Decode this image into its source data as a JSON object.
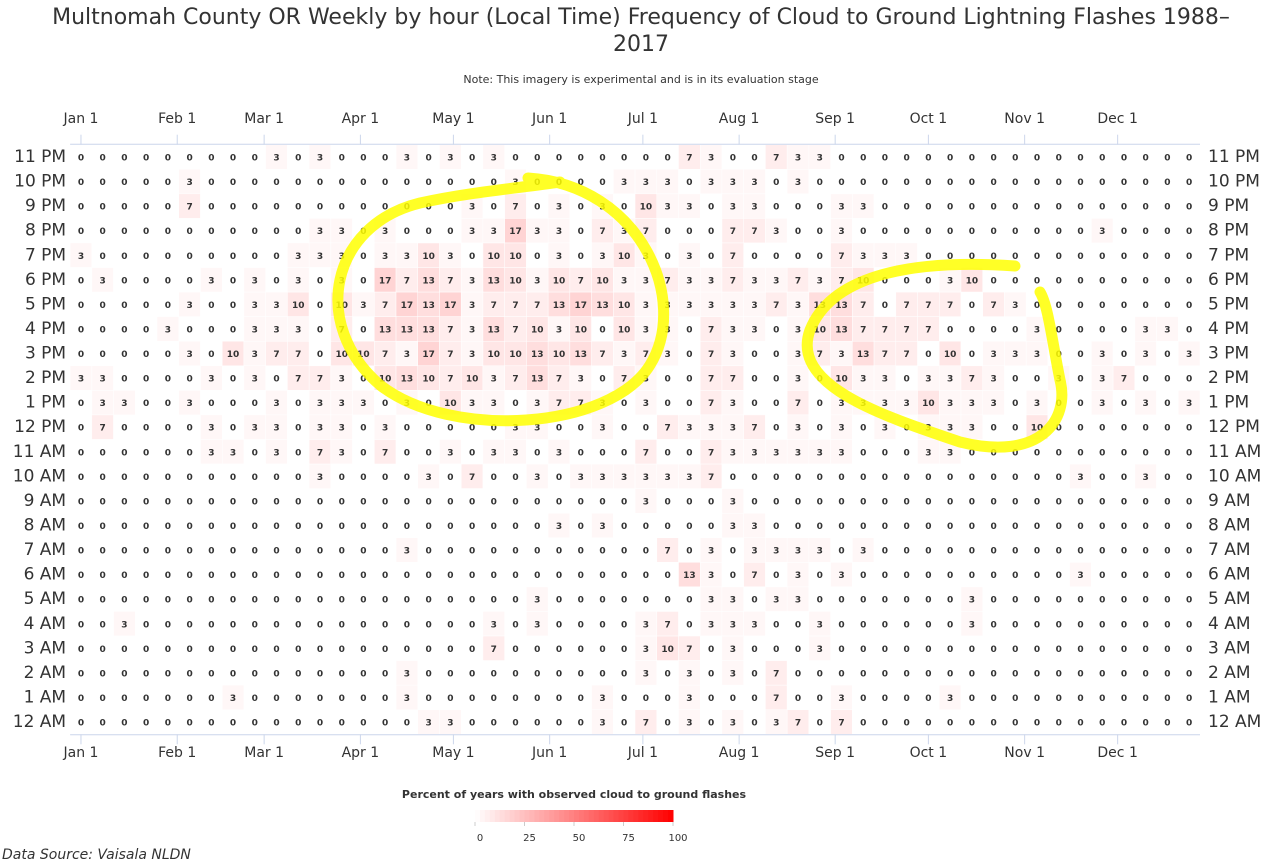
{
  "chart_data": {
    "type": "heatmap",
    "title": "Multnomah County OR Weekly by hour (Local Time) Frequency of Cloud to Ground Lightning Flashes 1988–2017",
    "subtitle": "Note: This imagery is experimental and is in its evaluation stage",
    "source": "Data Source: Vaisala NLDN",
    "colorbar_title": "Percent of years with observed cloud to ground flashes",
    "colorscale": [
      "#ffffff",
      "#ff0000"
    ],
    "zlim": [
      0,
      100
    ],
    "zticks": [
      0,
      25,
      50,
      75,
      100
    ],
    "xlim": [
      -0.5,
      51.5
    ],
    "xticks": [
      {
        "value": 0,
        "label": "Jan 1"
      },
      {
        "value": 4.43,
        "label": "Feb 1"
      },
      {
        "value": 8.43,
        "label": "Mar 1"
      },
      {
        "value": 12.86,
        "label": "Apr 1"
      },
      {
        "value": 17.14,
        "label": "May 1"
      },
      {
        "value": 21.57,
        "label": "Jun 1"
      },
      {
        "value": 25.86,
        "label": "Jul 1"
      },
      {
        "value": 30.29,
        "label": "Aug 1"
      },
      {
        "value": 34.71,
        "label": "Sep 1"
      },
      {
        "value": 39,
        "label": "Oct 1"
      },
      {
        "value": 43.43,
        "label": "Nov 1"
      },
      {
        "value": 47.71,
        "label": "Dec 1"
      }
    ],
    "rows": [
      "11 PM",
      "10 PM",
      "9 PM",
      "8 PM",
      "7 PM",
      "6 PM",
      "5 PM",
      "4 PM",
      "3 PM",
      "2 PM",
      "1 PM",
      "12 PM",
      "11 AM",
      "10 AM",
      "9 AM",
      "8 AM",
      "7 AM",
      "6 AM",
      "5 AM",
      "4 AM",
      "3 AM",
      "2 AM",
      "1 AM",
      "12 AM"
    ],
    "z": [
      [
        0,
        0,
        0,
        0,
        0,
        0,
        0,
        0,
        0,
        3,
        0,
        3,
        0,
        0,
        0,
        3,
        0,
        3,
        0,
        3,
        0,
        0,
        0,
        0,
        0,
        0,
        0,
        0,
        7,
        3,
        0,
        0,
        7,
        3,
        3,
        0,
        0,
        0,
        0,
        0,
        0,
        0,
        0,
        0,
        0,
        0,
        0,
        0,
        0,
        0,
        0,
        0
      ],
      [
        0,
        0,
        0,
        0,
        0,
        3,
        0,
        0,
        0,
        0,
        0,
        0,
        0,
        0,
        0,
        0,
        0,
        0,
        0,
        0,
        3,
        0,
        0,
        0,
        0,
        3,
        3,
        3,
        0,
        3,
        3,
        3,
        0,
        3,
        0,
        0,
        0,
        0,
        0,
        0,
        0,
        0,
        0,
        0,
        0,
        0,
        0,
        0,
        0,
        0,
        0,
        0
      ],
      [
        0,
        0,
        0,
        0,
        0,
        7,
        0,
        0,
        0,
        0,
        0,
        0,
        0,
        0,
        0,
        0,
        0,
        0,
        3,
        0,
        7,
        0,
        3,
        0,
        3,
        0,
        10,
        3,
        3,
        0,
        3,
        3,
        0,
        0,
        0,
        3,
        3,
        0,
        0,
        0,
        0,
        0,
        0,
        0,
        0,
        0,
        0,
        0,
        0,
        0,
        0,
        0
      ],
      [
        0,
        0,
        0,
        0,
        0,
        0,
        0,
        0,
        0,
        0,
        0,
        3,
        3,
        0,
        3,
        0,
        0,
        0,
        3,
        3,
        17,
        3,
        3,
        0,
        7,
        3,
        7,
        0,
        0,
        0,
        7,
        7,
        3,
        0,
        0,
        3,
        0,
        0,
        0,
        0,
        0,
        0,
        0,
        0,
        0,
        0,
        0,
        3,
        0,
        0,
        0,
        0
      ],
      [
        3,
        0,
        0,
        0,
        0,
        0,
        0,
        0,
        0,
        0,
        3,
        3,
        3,
        0,
        3,
        3,
        10,
        3,
        0,
        10,
        10,
        0,
        3,
        0,
        3,
        10,
        3,
        0,
        3,
        0,
        7,
        0,
        0,
        0,
        0,
        7,
        3,
        3,
        3,
        0,
        0,
        0,
        0,
        0,
        0,
        0,
        0,
        0,
        0,
        0,
        0,
        0
      ],
      [
        0,
        3,
        0,
        0,
        0,
        0,
        3,
        0,
        3,
        0,
        3,
        0,
        3,
        0,
        17,
        7,
        13,
        7,
        3,
        13,
        10,
        3,
        10,
        7,
        10,
        3,
        3,
        7,
        3,
        3,
        7,
        3,
        3,
        7,
        3,
        7,
        10,
        0,
        0,
        0,
        3,
        10,
        0,
        0,
        0,
        0,
        0,
        0,
        0,
        0,
        0,
        0
      ],
      [
        0,
        0,
        0,
        0,
        0,
        3,
        0,
        0,
        3,
        3,
        10,
        0,
        10,
        3,
        7,
        17,
        13,
        17,
        3,
        7,
        7,
        7,
        13,
        17,
        13,
        10,
        3,
        3,
        3,
        3,
        3,
        3,
        7,
        3,
        13,
        13,
        7,
        0,
        7,
        7,
        7,
        0,
        7,
        3,
        0,
        0,
        0,
        0,
        0,
        0,
        0,
        0
      ],
      [
        0,
        0,
        0,
        0,
        3,
        0,
        0,
        0,
        3,
        3,
        3,
        0,
        7,
        0,
        13,
        13,
        13,
        7,
        3,
        13,
        7,
        10,
        3,
        10,
        0,
        10,
        3,
        3,
        0,
        7,
        3,
        3,
        0,
        3,
        10,
        13,
        7,
        7,
        7,
        7,
        0,
        0,
        0,
        0,
        3,
        0,
        0,
        0,
        0,
        3,
        3,
        0
      ],
      [
        0,
        0,
        0,
        0,
        0,
        3,
        0,
        10,
        3,
        7,
        7,
        0,
        10,
        10,
        7,
        3,
        17,
        7,
        3,
        10,
        10,
        13,
        10,
        13,
        7,
        3,
        7,
        3,
        0,
        7,
        3,
        0,
        0,
        3,
        7,
        3,
        13,
        7,
        7,
        0,
        10,
        0,
        3,
        3,
        3,
        0,
        0,
        3,
        0,
        3,
        0,
        3
      ],
      [
        3,
        3,
        0,
        0,
        0,
        0,
        3,
        0,
        3,
        0,
        7,
        7,
        3,
        0,
        10,
        13,
        10,
        7,
        10,
        3,
        7,
        13,
        7,
        3,
        0,
        7,
        3,
        0,
        0,
        7,
        7,
        0,
        0,
        3,
        0,
        10,
        3,
        3,
        0,
        3,
        3,
        7,
        3,
        0,
        0,
        3,
        0,
        3,
        7,
        0,
        0,
        0
      ],
      [
        0,
        3,
        3,
        0,
        0,
        3,
        0,
        0,
        0,
        3,
        0,
        3,
        3,
        3,
        0,
        3,
        0,
        10,
        3,
        3,
        0,
        3,
        7,
        7,
        3,
        0,
        3,
        0,
        0,
        7,
        3,
        0,
        0,
        7,
        0,
        3,
        3,
        3,
        3,
        10,
        3,
        3,
        3,
        0,
        3,
        0,
        0,
        3,
        0,
        3,
        0,
        3
      ],
      [
        0,
        7,
        0,
        0,
        0,
        0,
        3,
        0,
        3,
        3,
        0,
        3,
        3,
        0,
        3,
        0,
        0,
        0,
        0,
        0,
        3,
        3,
        0,
        0,
        3,
        0,
        0,
        7,
        3,
        3,
        3,
        7,
        0,
        3,
        0,
        3,
        0,
        3,
        0,
        3,
        3,
        3,
        0,
        0,
        10,
        0,
        0,
        0,
        0,
        0,
        0,
        0
      ],
      [
        0,
        0,
        0,
        0,
        0,
        0,
        3,
        3,
        0,
        3,
        0,
        7,
        3,
        0,
        7,
        0,
        0,
        3,
        0,
        3,
        3,
        0,
        3,
        0,
        0,
        0,
        7,
        0,
        0,
        7,
        3,
        3,
        3,
        3,
        3,
        3,
        0,
        0,
        0,
        3,
        3,
        0,
        0,
        0,
        0,
        0,
        0,
        0,
        0,
        0,
        0,
        0
      ],
      [
        0,
        0,
        0,
        0,
        0,
        0,
        0,
        0,
        0,
        0,
        0,
        3,
        0,
        0,
        0,
        0,
        3,
        0,
        7,
        0,
        0,
        3,
        0,
        3,
        3,
        3,
        3,
        3,
        3,
        7,
        0,
        0,
        0,
        0,
        0,
        0,
        0,
        0,
        0,
        0,
        0,
        0,
        0,
        0,
        0,
        0,
        3,
        0,
        0,
        3,
        0,
        0
      ],
      [
        0,
        0,
        0,
        0,
        0,
        0,
        0,
        0,
        0,
        0,
        0,
        0,
        0,
        0,
        0,
        0,
        0,
        0,
        0,
        0,
        0,
        0,
        0,
        0,
        0,
        0,
        3,
        0,
        0,
        0,
        3,
        0,
        0,
        0,
        0,
        0,
        0,
        0,
        0,
        0,
        0,
        0,
        0,
        0,
        0,
        0,
        0,
        0,
        0,
        0,
        0,
        0
      ],
      [
        0,
        0,
        0,
        0,
        0,
        0,
        0,
        0,
        0,
        0,
        0,
        0,
        0,
        0,
        0,
        0,
        0,
        0,
        0,
        0,
        0,
        0,
        3,
        0,
        3,
        0,
        0,
        0,
        0,
        0,
        3,
        3,
        0,
        0,
        0,
        0,
        0,
        0,
        0,
        0,
        0,
        0,
        0,
        0,
        0,
        0,
        0,
        0,
        0,
        0,
        0,
        0
      ],
      [
        0,
        0,
        0,
        0,
        0,
        0,
        0,
        0,
        0,
        0,
        0,
        0,
        0,
        0,
        0,
        3,
        0,
        0,
        0,
        0,
        0,
        0,
        0,
        0,
        0,
        0,
        0,
        7,
        0,
        3,
        0,
        3,
        3,
        3,
        3,
        0,
        3,
        0,
        0,
        0,
        0,
        0,
        0,
        0,
        0,
        0,
        0,
        0,
        0,
        0,
        0,
        0
      ],
      [
        0,
        0,
        0,
        0,
        0,
        0,
        0,
        0,
        0,
        0,
        0,
        0,
        0,
        0,
        0,
        0,
        0,
        0,
        0,
        0,
        0,
        0,
        0,
        0,
        0,
        0,
        0,
        0,
        13,
        3,
        0,
        7,
        0,
        3,
        0,
        3,
        0,
        0,
        0,
        0,
        0,
        0,
        0,
        0,
        0,
        0,
        3,
        0,
        0,
        0,
        0,
        0
      ],
      [
        0,
        0,
        0,
        0,
        0,
        0,
        0,
        0,
        0,
        0,
        0,
        0,
        0,
        0,
        0,
        0,
        0,
        0,
        0,
        0,
        0,
        3,
        0,
        0,
        0,
        0,
        0,
        0,
        0,
        3,
        3,
        0,
        3,
        3,
        0,
        0,
        0,
        0,
        0,
        0,
        0,
        3,
        0,
        0,
        0,
        0,
        0,
        0,
        0,
        0,
        0,
        0
      ],
      [
        0,
        0,
        3,
        0,
        0,
        0,
        0,
        0,
        0,
        0,
        0,
        0,
        0,
        0,
        0,
        0,
        0,
        0,
        0,
        3,
        0,
        3,
        0,
        0,
        0,
        0,
        3,
        7,
        0,
        3,
        3,
        3,
        0,
        0,
        3,
        0,
        0,
        0,
        0,
        0,
        0,
        3,
        0,
        0,
        0,
        0,
        0,
        0,
        0,
        0,
        0,
        0
      ],
      [
        0,
        0,
        0,
        0,
        0,
        0,
        0,
        0,
        0,
        0,
        0,
        0,
        0,
        0,
        0,
        0,
        0,
        0,
        0,
        7,
        0,
        0,
        0,
        0,
        0,
        0,
        3,
        10,
        7,
        0,
        3,
        0,
        0,
        0,
        3,
        0,
        0,
        0,
        0,
        0,
        0,
        0,
        0,
        0,
        0,
        0,
        0,
        0,
        0,
        0,
        0,
        0
      ],
      [
        0,
        0,
        0,
        0,
        0,
        0,
        0,
        0,
        0,
        0,
        0,
        0,
        0,
        0,
        0,
        3,
        0,
        0,
        0,
        0,
        0,
        0,
        0,
        0,
        0,
        0,
        3,
        0,
        3,
        0,
        3,
        0,
        7,
        0,
        0,
        0,
        0,
        0,
        0,
        0,
        0,
        0,
        0,
        0,
        0,
        0,
        0,
        0,
        0,
        0,
        0,
        0
      ],
      [
        0,
        0,
        0,
        0,
        0,
        0,
        0,
        3,
        0,
        0,
        0,
        0,
        0,
        0,
        0,
        3,
        0,
        0,
        0,
        0,
        0,
        0,
        0,
        0,
        3,
        0,
        0,
        0,
        3,
        0,
        0,
        0,
        7,
        0,
        0,
        3,
        0,
        0,
        0,
        0,
        3,
        0,
        0,
        0,
        0,
        0,
        0,
        0,
        0,
        0,
        0,
        0
      ],
      [
        0,
        0,
        0,
        0,
        0,
        0,
        0,
        0,
        0,
        0,
        0,
        0,
        0,
        0,
        0,
        0,
        3,
        3,
        0,
        0,
        0,
        0,
        0,
        0,
        3,
        0,
        7,
        0,
        3,
        0,
        3,
        0,
        3,
        7,
        0,
        7,
        0,
        0,
        0,
        0,
        0,
        0,
        0,
        0,
        0,
        0,
        0,
        0,
        0,
        0,
        0,
        0
      ]
    ]
  }
}
